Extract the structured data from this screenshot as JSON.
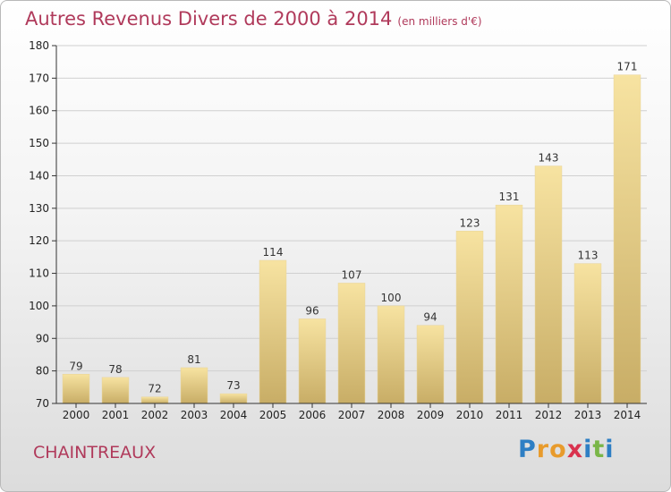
{
  "title": "Autres Revenus Divers de 2000 à 2014",
  "unit": "(en milliers d'€)",
  "commune": "CHAINTREAUX",
  "logo": {
    "letters": [
      "P",
      "r",
      "o",
      "x",
      "i",
      "t",
      "i"
    ],
    "colors": [
      "#2e7fc4",
      "#e89b2c",
      "#e89b2c",
      "#d9324e",
      "#2e7fc4",
      "#7ab648",
      "#2e7fc4"
    ]
  },
  "colors": {
    "bar_light": "#f7e3a1",
    "bar_dark": "#c8ad66",
    "title": "#b03a5b"
  },
  "chart_data": {
    "type": "bar",
    "categories": [
      "2000",
      "2001",
      "2002",
      "2003",
      "2004",
      "2005",
      "2006",
      "2007",
      "2008",
      "2009",
      "2010",
      "2011",
      "2012",
      "2013",
      "2014"
    ],
    "values": [
      79,
      78,
      72,
      81,
      73,
      114,
      96,
      107,
      100,
      94,
      123,
      131,
      143,
      113,
      171
    ],
    "ylim": [
      70,
      180
    ],
    "yticks": [
      70,
      80,
      90,
      100,
      110,
      120,
      130,
      140,
      150,
      160,
      170,
      180
    ],
    "grid": true
  }
}
